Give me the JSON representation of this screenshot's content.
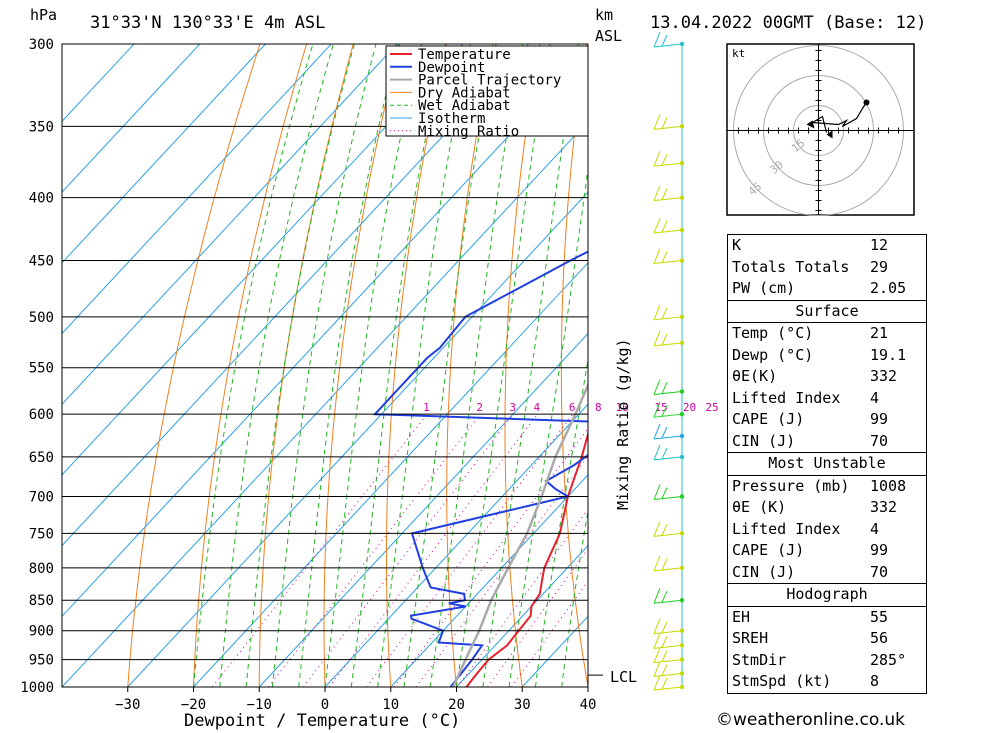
{
  "header": {
    "location": "31°33'N  130°33'E  4m  ASL",
    "datetime": "13.04.2022  00GMT  (Base: 12)",
    "pressure_unit": "hPa",
    "height_unit": "km",
    "height_unit2": "ASL"
  },
  "chart_data": {
    "type": "line",
    "subtype": "skew-T log-p",
    "xlabel": "Dewpoint / Temperature (°C)",
    "ylabel": "hPa",
    "right_label": "Mixing Ratio (g/kg)",
    "x_ticks": [
      -30,
      -20,
      -10,
      0,
      10,
      20,
      30,
      40
    ],
    "pressure_ticks": [
      300,
      350,
      400,
      450,
      500,
      550,
      600,
      650,
      700,
      750,
      800,
      850,
      900,
      950,
      1000
    ],
    "xlim": [
      -40,
      40
    ],
    "plim": [
      1000,
      300
    ],
    "mixing_ratio_labels": [
      "1",
      "2",
      "3",
      "4",
      "6",
      "8",
      "10",
      "15",
      "20",
      "25"
    ],
    "lcl_label": "LCL",
    "legend": [
      "Temperature",
      "Dewpoint",
      "Parcel Trajectory",
      "Dry Adiabat",
      "Wet Adiabat",
      "Isotherm",
      "Mixing Ratio"
    ],
    "colors": {
      "temperature": "#e8202a",
      "dewpoint": "#1f3fe0",
      "parcel": "#aaaaaa",
      "dry_adiabat": "#f08020",
      "wet_adiabat": "#22b522",
      "isotherm": "#2aa0e8",
      "mixing_ratio": "#d000a0"
    },
    "series": [
      {
        "name": "Temperature",
        "points": [
          [
            1000,
            21.5
          ],
          [
            975,
            21.2
          ],
          [
            950,
            21
          ],
          [
            925,
            21.8
          ],
          [
            900,
            21.5
          ],
          [
            875,
            21.2
          ],
          [
            860,
            20
          ],
          [
            840,
            19.5
          ],
          [
            820,
            18
          ],
          [
            800,
            16.5
          ],
          [
            750,
            14
          ],
          [
            700,
            10
          ],
          [
            650,
            6.5
          ],
          [
            620,
            4
          ],
          [
            615,
            9
          ],
          [
            600,
            10
          ],
          [
            560,
            10.2
          ],
          [
            540,
            10
          ],
          [
            530,
            10.8
          ],
          [
            500,
            9
          ],
          [
            450,
            4
          ],
          [
            400,
            -2.5
          ],
          [
            350,
            -9
          ],
          [
            300,
            -13
          ]
        ]
      },
      {
        "name": "Dewpoint",
        "points": [
          [
            1000,
            19.1
          ],
          [
            950,
            18.5
          ],
          [
            925,
            18
          ],
          [
            920,
            11
          ],
          [
            900,
            10
          ],
          [
            880,
            3.5
          ],
          [
            875,
            3
          ],
          [
            860,
            10
          ],
          [
            855,
            7
          ],
          [
            850,
            9
          ],
          [
            840,
            8
          ],
          [
            830,
            2
          ],
          [
            800,
            -2
          ],
          [
            750,
            -8.5
          ],
          [
            700,
            10
          ],
          [
            690,
            7
          ],
          [
            680,
            4.5
          ],
          [
            660,
            6.5
          ],
          [
            610,
            9.5
          ],
          [
            600,
            -31
          ],
          [
            580,
            -31
          ],
          [
            540,
            -31
          ],
          [
            530,
            -30.5
          ],
          [
            500,
            -31
          ],
          [
            450,
            -23
          ],
          [
            400,
            -13
          ],
          [
            380,
            -11
          ],
          [
            300,
            -12
          ]
        ]
      },
      {
        "name": "Parcel Trajectory",
        "points": [
          [
            1000,
            19.5
          ],
          [
            975,
            18.5
          ],
          [
            950,
            17.5
          ],
          [
            900,
            15.5
          ],
          [
            850,
            13
          ],
          [
            800,
            11
          ],
          [
            750,
            9
          ],
          [
            700,
            6
          ],
          [
            650,
            2.5
          ],
          [
            600,
            -0.5
          ],
          [
            550,
            -4
          ],
          [
            500,
            -8
          ],
          [
            450,
            -13
          ],
          [
            400,
            -19
          ],
          [
            350,
            -27
          ],
          [
            300,
            -36
          ]
        ]
      }
    ],
    "wind_barbs": [
      {
        "p": 1000,
        "color": "#c8d800"
      },
      {
        "p": 975,
        "color": "#c8d800"
      },
      {
        "p": 950,
        "color": "#c8d800"
      },
      {
        "p": 925,
        "color": "#c8d800"
      },
      {
        "p": 900,
        "color": "#c8d800"
      },
      {
        "p": 850,
        "color": "#20d020"
      },
      {
        "p": 800,
        "color": "#c8d800"
      },
      {
        "p": 750,
        "color": "#c8d800"
      },
      {
        "p": 700,
        "color": "#20d020"
      },
      {
        "p": 650,
        "color": "#22c0c8"
      },
      {
        "p": 625,
        "color": "#22a8e0"
      },
      {
        "p": 600,
        "color": "#20d020"
      },
      {
        "p": 575,
        "color": "#20d020"
      },
      {
        "p": 525,
        "color": "#c8d800"
      },
      {
        "p": 500,
        "color": "#c8d800"
      },
      {
        "p": 450,
        "color": "#c8d800"
      },
      {
        "p": 425,
        "color": "#c8d800"
      },
      {
        "p": 400,
        "color": "#c8d800"
      },
      {
        "p": 375,
        "color": "#c8d800"
      },
      {
        "p": 350,
        "color": "#c8d800"
      },
      {
        "p": 300,
        "color": "#22c0c8"
      }
    ]
  },
  "hodograph": {
    "unit": "kt",
    "rings": [
      "15",
      "30",
      "45"
    ]
  },
  "indices": {
    "basic": [
      {
        "k": "K",
        "v": "12"
      },
      {
        "k": "Totals Totals",
        "v": "29"
      },
      {
        "k": "PW (cm)",
        "v": "2.05"
      }
    ],
    "surface_title": "Surface",
    "surface": [
      {
        "k": "Temp (°C)",
        "v": "21"
      },
      {
        "k": "Dewp (°C)",
        "v": "19.1"
      },
      {
        "k": "θE(K)",
        "v": "332"
      },
      {
        "k": "Lifted Index",
        "v": "4"
      },
      {
        "k": "CAPE (J)",
        "v": "99"
      },
      {
        "k": "CIN (J)",
        "v": "70"
      }
    ],
    "mu_title": "Most Unstable",
    "mu": [
      {
        "k": "Pressure (mb)",
        "v": "1008"
      },
      {
        "k": "θE (K)",
        "v": "332"
      },
      {
        "k": "Lifted Index",
        "v": "4"
      },
      {
        "k": "CAPE (J)",
        "v": "99"
      },
      {
        "k": "CIN (J)",
        "v": "70"
      }
    ],
    "hodo_title": "Hodograph",
    "hodo": [
      {
        "k": "EH",
        "v": "55"
      },
      {
        "k": "SREH",
        "v": "56"
      },
      {
        "k": "StmDir",
        "v": "285°"
      },
      {
        "k": "StmSpd (kt)",
        "v": "8"
      }
    ]
  },
  "footer": {
    "copyright": "©weatheronline.co.uk"
  }
}
